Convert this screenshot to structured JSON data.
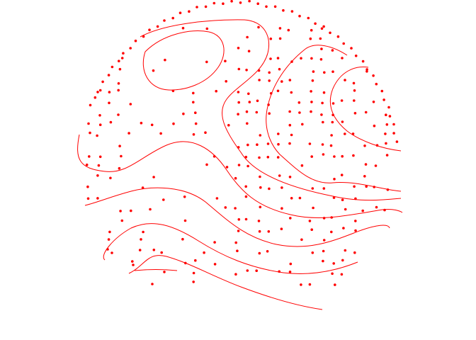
{
  "figure": {
    "kind": "contour map with sample points on a circular domain",
    "colors": {
      "contour": "#ff0000",
      "points": "#ff0000",
      "background": "#ffffff"
    }
  }
}
